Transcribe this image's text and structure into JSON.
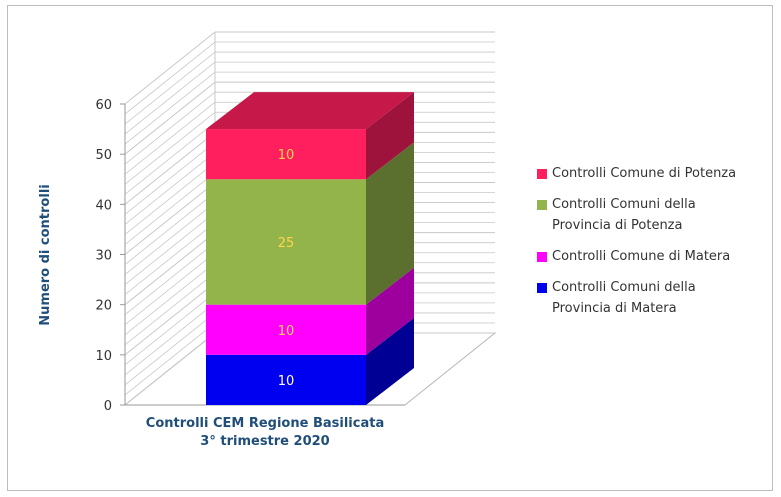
{
  "chart_data": {
    "type": "bar",
    "stacked": true,
    "three_d": true,
    "categories": [
      "Controlli CEM Regione Basilicata\n3° trimestre 2020"
    ],
    "ylabel": "Numero di controlli",
    "xlabel": "",
    "ylim": [
      0,
      60
    ],
    "yticks": [
      "0",
      "10",
      "20",
      "30",
      "40",
      "50",
      "60"
    ],
    "grid": true,
    "legend_position": "right",
    "series": [
      {
        "name": "Controlli  Comuni della\nProvincia di Matera",
        "values": [
          10
        ],
        "color": "#0000f0",
        "label": "10"
      },
      {
        "name": "Controlli Comune di Matera",
        "values": [
          10
        ],
        "color": "#ff00ff",
        "label": "10"
      },
      {
        "name": "Controlli  Comuni della\nProvincia di Potenza",
        "values": [
          25
        ],
        "color": "#93b34b",
        "label": "25"
      },
      {
        "name": "Controlli Comune di Potenza",
        "values": [
          10
        ],
        "color": "#ff1f5f",
        "label": "10"
      }
    ]
  },
  "colors": {
    "axis_label": "#1f4e79",
    "grid": "#c8c8c8",
    "value_label_light": "#ffffff",
    "value_label_yellow": "#ffd84a"
  }
}
